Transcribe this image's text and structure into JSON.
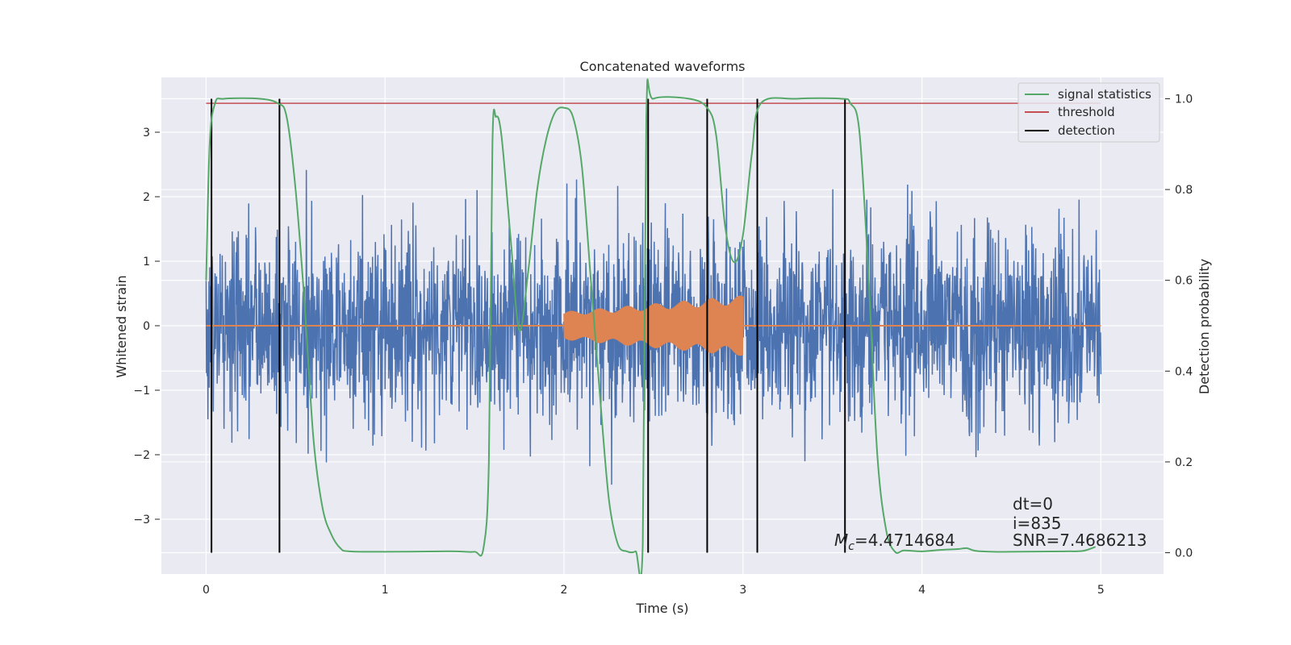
{
  "chart_data": {
    "type": "line",
    "title": "Concatenated waveforms",
    "xlabel": "Time (s)",
    "ylabel": "Whitened strain",
    "ylabel_right": "Detection probability",
    "xlim": [
      -0.25,
      5.35
    ],
    "ylim": [
      -3.85,
      3.85
    ],
    "ylim_right": [
      -0.047,
      1.047
    ],
    "x_ticks": [
      0,
      1,
      2,
      3,
      4,
      5
    ],
    "y_ticks": [
      -3,
      -2,
      -1,
      0,
      1,
      2,
      3
    ],
    "y_ticks_right": [
      0.0,
      0.2,
      0.4,
      0.6,
      0.8,
      1.0
    ],
    "x_tick_labels": [
      "0",
      "1",
      "2",
      "3",
      "4",
      "5"
    ],
    "y_tick_labels": [
      "−3",
      "−2",
      "−1",
      "0",
      "1",
      "2",
      "3"
    ],
    "y_tick_labels_right": [
      "0.0",
      "0.2",
      "0.4",
      "0.6",
      "0.8",
      "1.0"
    ],
    "grid": true,
    "legend_position": "top-right",
    "colors": {
      "background": "#EAEAF2",
      "grid": "#FFFFFF",
      "strain": "#4C72B0",
      "template": "#DD8452",
      "signal": "#55A868",
      "threshold": "#C44E52",
      "detection": "#000000"
    },
    "series": [
      {
        "name": "strain",
        "axis": "left",
        "style": "noise",
        "x_range": [
          0,
          5
        ],
        "sigma": 0.75,
        "description": "whitened noisy strain, peaks roughly within ±3.5"
      },
      {
        "name": "template",
        "axis": "left",
        "style": "chirp",
        "x_range": [
          2.0,
          3.0
        ],
        "amplitude_range": [
          0.22,
          0.47
        ],
        "baseline": 0
      },
      {
        "name": "signal statistics",
        "axis": "right",
        "x": [
          0.0,
          0.02,
          0.05,
          0.1,
          0.3,
          0.4,
          0.45,
          0.5,
          0.55,
          0.6,
          0.65,
          0.7,
          0.75,
          0.8,
          1.0,
          1.3,
          1.4,
          1.5,
          1.55,
          1.58,
          1.6,
          1.62,
          1.65,
          1.7,
          1.75,
          1.8,
          1.85,
          1.9,
          1.95,
          2.0,
          2.05,
          2.1,
          2.15,
          2.2,
          2.25,
          2.3,
          2.35,
          2.4,
          2.44,
          2.46,
          2.5,
          2.7,
          2.8,
          2.85,
          2.9,
          2.95,
          3.0,
          3.05,
          3.1,
          3.3,
          3.55,
          3.6,
          3.65,
          3.7,
          3.75,
          3.8,
          3.85,
          3.9,
          4.0,
          4.1,
          4.2,
          4.25,
          4.3,
          4.4,
          4.5,
          4.8,
          4.9,
          4.97
        ],
        "values": [
          0.6,
          0.9,
          0.99,
          1.0,
          1.0,
          0.99,
          0.96,
          0.8,
          0.55,
          0.25,
          0.1,
          0.04,
          0.01,
          0.003,
          0.002,
          0.003,
          0.003,
          0.002,
          0.01,
          0.2,
          0.9,
          0.96,
          0.92,
          0.7,
          0.49,
          0.62,
          0.8,
          0.91,
          0.97,
          0.98,
          0.96,
          0.85,
          0.6,
          0.35,
          0.12,
          0.02,
          0.003,
          0.003,
          0.02,
          0.96,
          1.0,
          1.0,
          0.98,
          0.92,
          0.72,
          0.64,
          0.7,
          0.88,
          0.99,
          1.0,
          1.0,
          0.99,
          0.93,
          0.62,
          0.22,
          0.05,
          0.002,
          0.005,
          0.003,
          0.006,
          0.008,
          0.01,
          0.004,
          0.002,
          0.002,
          0.003,
          0.004,
          0.013
        ],
        "label": "signal statistics"
      },
      {
        "name": "threshold",
        "axis": "right",
        "x": [
          0.0,
          5.0
        ],
        "values": [
          0.99,
          0.99
        ],
        "label": "threshold"
      },
      {
        "name": "detection",
        "axis": "right",
        "type": "vlines",
        "x": [
          0.03,
          0.41,
          2.47,
          2.8,
          3.08,
          3.57
        ],
        "ymin": 0.0,
        "ymax": 1.0,
        "label": "detection"
      }
    ],
    "legend": [
      "signal statistics",
      "threshold",
      "detection"
    ],
    "annotations": {
      "mc_symbol": "M",
      "mc_subscript": "c",
      "mc_value": "=4.4714684",
      "dt": "dt=0",
      "i": "i=835",
      "snr": "SNR=7.4686213"
    }
  }
}
